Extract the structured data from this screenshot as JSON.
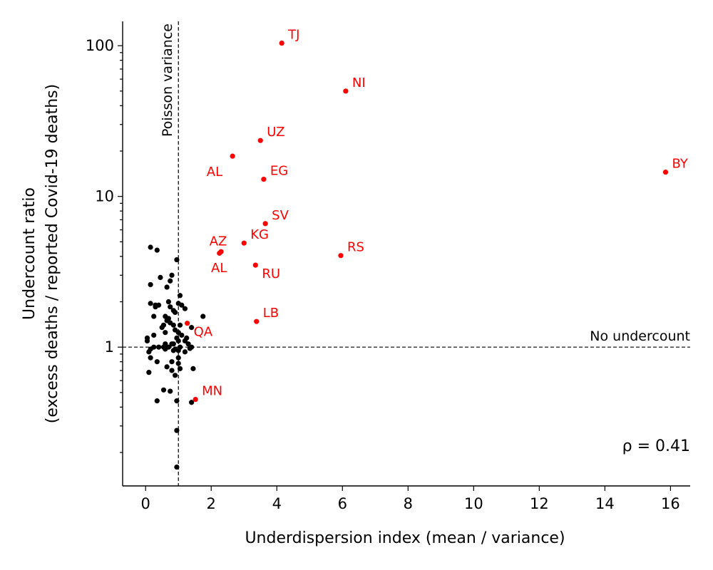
{
  "chart_data": {
    "type": "scatter",
    "title": "",
    "xlabel": "Underdispersion index (mean / variance)",
    "ylabel_lines": [
      "Undercount ratio",
      "(excess deaths / reported Covid-19 deaths)"
    ],
    "x_ticks": [
      0,
      2,
      4,
      6,
      8,
      10,
      12,
      14,
      16
    ],
    "y_ticks": [
      1,
      10,
      100
    ],
    "y_tick_labels": [
      "1",
      "10",
      "100"
    ],
    "xlim": [
      -0.7,
      16.6
    ],
    "ylim": [
      0.12,
      145
    ],
    "yscale": "log",
    "grid": false,
    "reference_lines": {
      "vertical": {
        "x": 1,
        "label": "Poisson variance"
      },
      "horizontal": {
        "y": 1,
        "label": "No undercount"
      }
    },
    "annotation": "ρ = 0.41",
    "colors": {
      "highlight": "#ff0000",
      "normal": "#000000"
    },
    "highlighted": [
      {
        "label": "TJ",
        "x": 4.15,
        "y": 104,
        "label_pos": "right"
      },
      {
        "label": "NI",
        "x": 6.1,
        "y": 50,
        "label_pos": "right"
      },
      {
        "label": "UZ",
        "x": 3.5,
        "y": 23.5,
        "label_pos": "right"
      },
      {
        "label": "AL",
        "x": 2.65,
        "y": 18.5,
        "label_pos": "below-left"
      },
      {
        "label": "EG",
        "x": 3.6,
        "y": 13,
        "label_pos": "right"
      },
      {
        "label": "BY",
        "x": 15.85,
        "y": 14.5,
        "label_pos": "right"
      },
      {
        "label": "SV",
        "x": 3.65,
        "y": 6.6,
        "label_pos": "right"
      },
      {
        "label": "KG",
        "x": 3.0,
        "y": 4.9,
        "label_pos": "right"
      },
      {
        "label": "AZ",
        "x": 2.25,
        "y": 4.2,
        "label_pos": "above"
      },
      {
        "label": "AL",
        "x": 2.3,
        "y": 4.3,
        "label_pos": "below-left-small"
      },
      {
        "label": "RS",
        "x": 5.95,
        "y": 4.05,
        "label_pos": "right"
      },
      {
        "label": "RU",
        "x": 3.35,
        "y": 3.5,
        "label_pos": "below-right"
      },
      {
        "label": "LB",
        "x": 3.38,
        "y": 1.48,
        "label_pos": "right"
      },
      {
        "label": "QA",
        "x": 1.27,
        "y": 1.44,
        "label_pos": "below-right"
      },
      {
        "label": "MN",
        "x": 1.52,
        "y": 0.45,
        "label_pos": "right"
      }
    ],
    "points": [
      [
        0.15,
        4.6
      ],
      [
        0.35,
        4.4
      ],
      [
        0.95,
        3.8
      ],
      [
        0.8,
        3.0
      ],
      [
        0.45,
        2.9
      ],
      [
        0.75,
        2.75
      ],
      [
        0.15,
        2.6
      ],
      [
        0.65,
        2.5
      ],
      [
        1.05,
        2.2
      ],
      [
        0.7,
        2.0
      ],
      [
        0.15,
        1.95
      ],
      [
        1.0,
        1.95
      ],
      [
        0.3,
        1.9
      ],
      [
        0.4,
        1.9
      ],
      [
        0.75,
        1.85
      ],
      [
        1.1,
        1.9
      ],
      [
        0.3,
        1.85
      ],
      [
        1.2,
        1.8
      ],
      [
        0.85,
        1.75
      ],
      [
        0.9,
        1.7
      ],
      [
        0.6,
        1.6
      ],
      [
        0.25,
        1.6
      ],
      [
        0.7,
        1.55
      ],
      [
        1.75,
        1.6
      ],
      [
        0.65,
        1.5
      ],
      [
        0.75,
        1.45
      ],
      [
        0.55,
        1.4
      ],
      [
        0.85,
        1.4
      ],
      [
        1.05,
        1.4
      ],
      [
        0.5,
        1.35
      ],
      [
        1.4,
        1.35
      ],
      [
        0.9,
        1.3
      ],
      [
        0.6,
        1.25
      ],
      [
        1.0,
        1.25
      ],
      [
        0.25,
        1.2
      ],
      [
        1.1,
        1.2
      ],
      [
        0.95,
        1.15
      ],
      [
        0.05,
        1.15
      ],
      [
        1.25,
        1.15
      ],
      [
        1.0,
        1.1
      ],
      [
        1.2,
        1.1
      ],
      [
        0.05,
        1.1
      ],
      [
        0.85,
        1.05
      ],
      [
        0.6,
        1.05
      ],
      [
        0.8,
        1.05
      ],
      [
        1.3,
        1.05
      ],
      [
        0.4,
        1.0
      ],
      [
        0.25,
        1.0
      ],
      [
        0.55,
        1.0
      ],
      [
        0.7,
        1.0
      ],
      [
        1.05,
        1.0
      ],
      [
        1.4,
        1.0
      ],
      [
        0.15,
        0.97
      ],
      [
        0.9,
        0.97
      ],
      [
        0.6,
        0.97
      ],
      [
        1.2,
        0.93
      ],
      [
        0.1,
        0.93
      ],
      [
        0.85,
        0.95
      ],
      [
        1.0,
        0.95
      ],
      [
        1.35,
        0.98
      ],
      [
        0.15,
        0.85
      ],
      [
        1.0,
        0.85
      ],
      [
        0.35,
        0.8
      ],
      [
        0.8,
        0.8
      ],
      [
        1.0,
        0.78
      ],
      [
        0.65,
        0.74
      ],
      [
        1.05,
        0.72
      ],
      [
        1.45,
        0.72
      ],
      [
        0.8,
        0.7
      ],
      [
        0.1,
        0.68
      ],
      [
        0.9,
        0.65
      ],
      [
        0.55,
        0.52
      ],
      [
        0.75,
        0.51
      ],
      [
        0.35,
        0.44
      ],
      [
        0.95,
        0.44
      ],
      [
        1.4,
        0.43
      ],
      [
        0.95,
        0.28
      ],
      [
        0.95,
        0.16
      ]
    ]
  }
}
